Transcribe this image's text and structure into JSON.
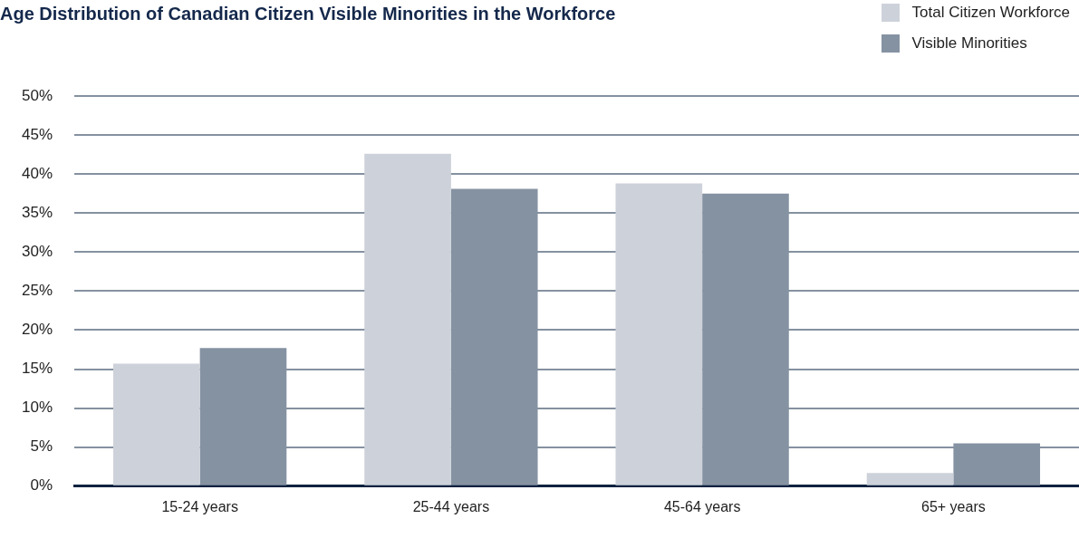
{
  "chart_data": {
    "type": "bar",
    "title": "Age Distribution of Canadian Citizen Visible Minorities in the Workforce",
    "categories": [
      "15-24 years",
      "25-44 years",
      "45-64 years",
      "65+ years"
    ],
    "series": [
      {
        "name": "Total Citizen Workforce",
        "color": "#cdd2da",
        "values": [
          15.7,
          42.6,
          38.8,
          1.7
        ]
      },
      {
        "name": "Visible Minorities",
        "color": "#8592a2",
        "values": [
          17.7,
          38.1,
          37.5,
          5.5
        ]
      }
    ],
    "ylim": [
      0,
      50
    ],
    "yticks": [
      {
        "value": 0,
        "label": "0%"
      },
      {
        "value": 5,
        "label": "5%"
      },
      {
        "value": 10,
        "label": "10%"
      },
      {
        "value": 15,
        "label": "15%"
      },
      {
        "value": 20,
        "label": "20%"
      },
      {
        "value": 25,
        "label": "25%"
      },
      {
        "value": 30,
        "label": "30%"
      },
      {
        "value": 35,
        "label": "35%"
      },
      {
        "value": 40,
        "label": "40%"
      },
      {
        "value": 45,
        "label": "45%"
      },
      {
        "value": 50,
        "label": "50%"
      }
    ],
    "grid": "y",
    "legend": "top right"
  }
}
